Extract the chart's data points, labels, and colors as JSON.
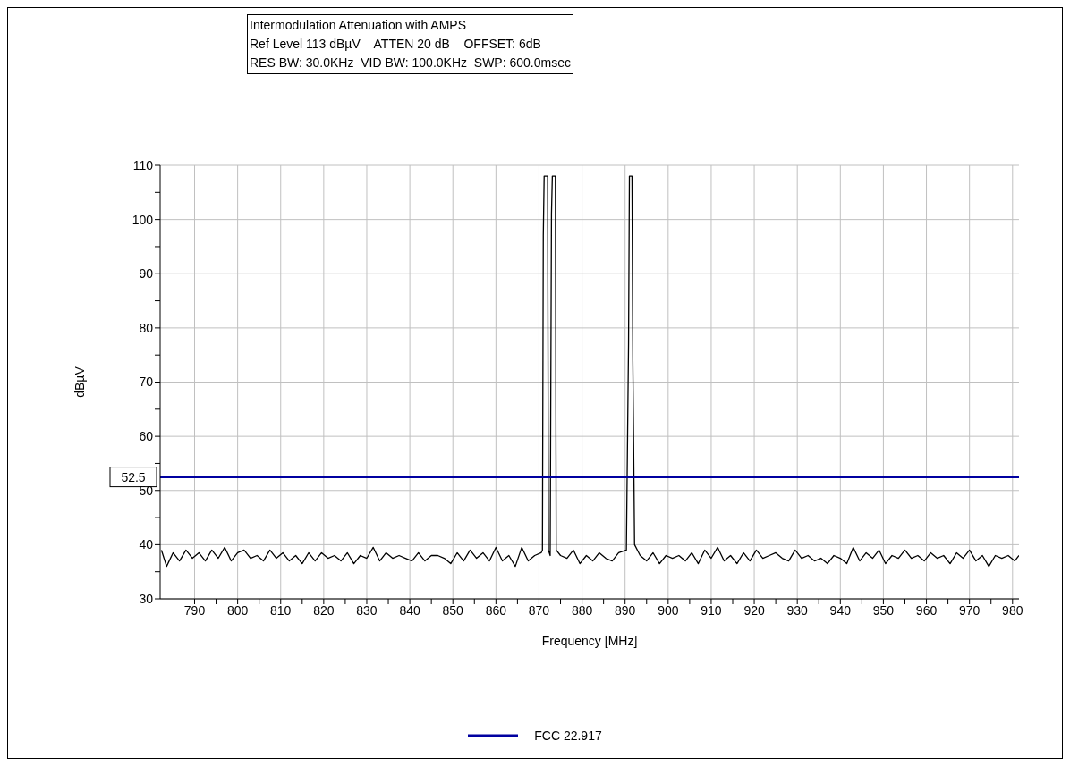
{
  "chart_data": {
    "type": "line",
    "title": "Intermodulation Attenuation with AMPS",
    "subtitle": "Ref Level 113 dBµV    ATTEN 20 dB    OFFSET: 6dB\nRES BW: 30.0KHz  VID BW: 100.0KHz  SWP: 600.0msec",
    "xlabel": "Frequency [MHz]",
    "ylabel": "dBµV",
    "xlim": [
      782,
      981.5
    ],
    "ylim": [
      30,
      110
    ],
    "xticks": [
      790,
      {
        "value": 795,
        "label": null
      },
      800,
      {
        "value": 805,
        "label": null
      },
      810,
      {
        "value": 815,
        "label": null
      },
      820,
      {
        "value": 825,
        "label": null
      },
      830,
      {
        "value": 835,
        "label": null
      },
      840,
      {
        "value": 845,
        "label": null
      },
      850,
      {
        "value": 855,
        "label": null
      },
      860,
      {
        "value": 865,
        "label": null
      },
      870,
      {
        "value": 875,
        "label": null
      },
      880,
      {
        "value": 885,
        "label": null
      },
      890,
      {
        "value": 895,
        "label": null
      },
      900,
      {
        "value": 905,
        "label": null
      },
      910,
      {
        "value": 915,
        "label": null
      },
      920,
      {
        "value": 925,
        "label": null
      },
      930,
      {
        "value": 935,
        "label": null
      },
      940,
      {
        "value": 945,
        "label": null
      },
      950,
      {
        "value": 955,
        "label": null
      },
      960,
      {
        "value": 965,
        "label": null
      },
      970,
      {
        "value": 975,
        "label": null
      },
      980
    ],
    "yticks": [
      30,
      {
        "value": 35,
        "label": null
      },
      40,
      {
        "value": 45,
        "label": null
      },
      50,
      {
        "value": 55,
        "label": null
      },
      60,
      {
        "value": 65,
        "label": null
      },
      70,
      {
        "value": 75,
        "label": null
      },
      80,
      {
        "value": 85,
        "label": null
      },
      90,
      {
        "value": 95,
        "label": null
      },
      100,
      {
        "value": 105,
        "label": null
      },
      110
    ],
    "grid": true,
    "legend": "bottom",
    "marker": "none",
    "annotations": [
      {
        "text": "52.5",
        "x": 782,
        "y": 52.5
      }
    ],
    "series": [
      {
        "color": "#000000",
        "x": [
          782.3,
          783.5,
          785,
          786.5,
          788,
          789.5,
          791,
          792.5,
          794,
          795.5,
          797,
          798.5,
          800,
          801.5,
          803,
          804.5,
          806,
          807.5,
          809,
          810.5,
          812,
          813.5,
          815,
          816.5,
          818,
          819.5,
          821,
          822.5,
          824,
          825.5,
          827,
          828.5,
          830,
          831.5,
          833,
          834.5,
          836,
          837.5,
          839,
          840.5,
          842,
          843.5,
          845,
          846.5,
          848,
          849.5,
          851,
          852.5,
          854,
          855.5,
          857,
          858.5,
          860,
          861.5,
          863,
          864.5,
          866,
          867.5,
          869,
          870.5,
          870.8,
          871.0,
          871.2,
          872.0,
          872.2,
          872.6,
          872.9,
          873.1,
          873.8,
          874.0,
          875,
          876.5,
          878,
          879.5,
          881,
          882.5,
          884,
          885.5,
          887,
          888.5,
          890.3,
          890.8,
          891.0,
          891.6,
          891.8,
          892.2,
          893.5,
          895,
          896.5,
          898,
          899.5,
          901,
          902.5,
          904,
          905.5,
          907,
          908.5,
          910,
          911.5,
          913,
          914.5,
          916,
          917.5,
          919,
          920.5,
          922,
          923.5,
          925,
          926.5,
          928,
          929.5,
          931,
          932.5,
          934,
          935.5,
          937,
          938.5,
          940,
          941.5,
          943,
          944.5,
          946,
          947.5,
          949,
          950.5,
          952,
          953.5,
          955,
          956.5,
          958,
          959.5,
          961,
          962.5,
          964,
          965.5,
          967,
          968.5,
          970,
          971.5,
          973,
          974.5,
          976,
          977.5,
          979,
          980.5,
          981.5
        ],
        "values": [
          39,
          36,
          38.5,
          37,
          39,
          37.5,
          38.5,
          37,
          39,
          37.5,
          39.5,
          37,
          38.5,
          39,
          37.5,
          38,
          37,
          39,
          37.5,
          38.5,
          37,
          38,
          36.5,
          38.5,
          37,
          38.5,
          37.5,
          38,
          37,
          38.5,
          36.5,
          38,
          37.5,
          39.5,
          37,
          38.5,
          37.5,
          38,
          37.5,
          37,
          38.5,
          37,
          38,
          38,
          37.5,
          36.5,
          38.5,
          37,
          39,
          37.5,
          38.5,
          37,
          39.5,
          37,
          38,
          36,
          39.5,
          37,
          38,
          38.5,
          39,
          97,
          108,
          108,
          39,
          38,
          101,
          108,
          108,
          39,
          38,
          37.5,
          39,
          36.5,
          38,
          37,
          38.5,
          37.5,
          37,
          38.5,
          39,
          77,
          108,
          108,
          74,
          40,
          38,
          37,
          38.5,
          36.5,
          38,
          37.5,
          38,
          37,
          38.5,
          36.5,
          39,
          37.5,
          39.5,
          37,
          38,
          36.5,
          38.5,
          37,
          39,
          37.5,
          38,
          38.5,
          37.5,
          37,
          39,
          37.5,
          38,
          37,
          37.5,
          36.5,
          38,
          37.5,
          36.5,
          39.5,
          37,
          38.5,
          37.5,
          39,
          36.5,
          38,
          37.5,
          39,
          37.5,
          38,
          37,
          38.5,
          37.5,
          38,
          36.5,
          38.5,
          37.5,
          39,
          37,
          38,
          36,
          38,
          37.5,
          38,
          37,
          38
        ]
      },
      {
        "name": "FCC 22.917",
        "color": "#0000a0",
        "x": [
          782,
          981.5
        ],
        "values": [
          52.5,
          52.5
        ]
      }
    ]
  }
}
